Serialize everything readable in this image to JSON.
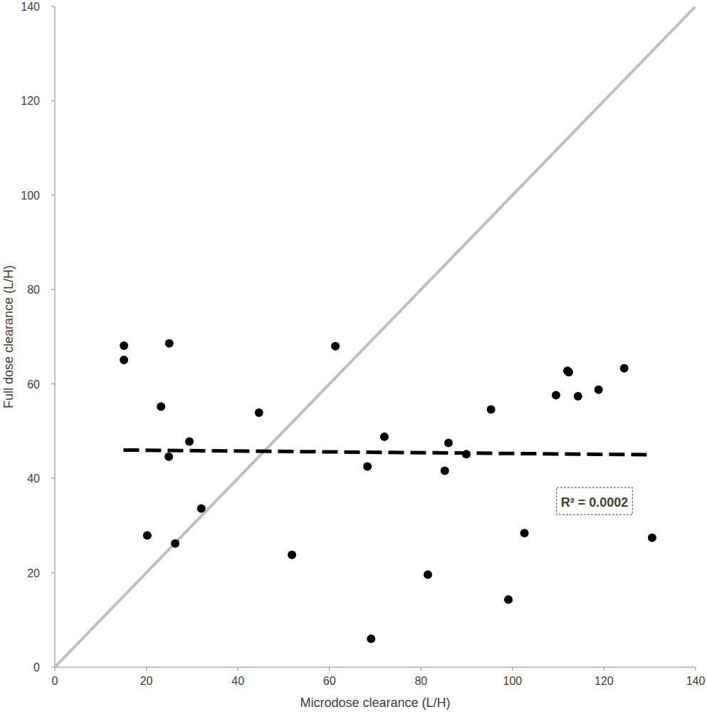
{
  "chart_data": {
    "type": "scatter",
    "x_label": "Microdose clearance (L/H)",
    "y_label": "Full dose clearance (L/H)",
    "xlim": [
      0,
      140
    ],
    "ylim": [
      0,
      140
    ],
    "xticks": [
      0,
      20,
      40,
      60,
      80,
      100,
      120,
      140
    ],
    "yticks": [
      0,
      20,
      40,
      60,
      80,
      100,
      120,
      140
    ],
    "grid": false,
    "annotations": [
      "R² = 0.0002"
    ],
    "series": [
      {
        "type": "line",
        "color": "#bfbfbf",
        "line_style": "solid",
        "x": [
          0,
          140
        ],
        "values": [
          0,
          140
        ]
      },
      {
        "type": "scatter",
        "color": "#000000",
        "marker": "circle",
        "x": [
          15.1,
          15.1,
          25.0,
          23.2,
          24.9,
          20.2,
          26.3,
          29.4,
          32.0,
          44.6,
          51.8,
          61.3,
          68.3,
          69.1,
          72.0,
          81.5,
          85.2,
          86.0,
          89.9,
          95.3,
          99.1,
          102.6,
          109.5,
          112.0,
          112.3,
          114.3,
          118.8,
          124.4,
          130.5
        ],
        "values": [
          65.1,
          68.1,
          68.6,
          55.2,
          44.6,
          27.9,
          26.2,
          47.8,
          33.6,
          53.9,
          23.8,
          68.0,
          42.5,
          6.0,
          48.8,
          19.6,
          41.6,
          47.5,
          45.1,
          54.6,
          14.3,
          28.4,
          57.6,
          62.8,
          62.5,
          57.4,
          58.8,
          63.3,
          27.4
        ]
      },
      {
        "type": "line",
        "color": "#000000",
        "line_style": "dashed",
        "x": [
          15,
          130
        ],
        "values": [
          46,
          45
        ]
      }
    ]
  }
}
